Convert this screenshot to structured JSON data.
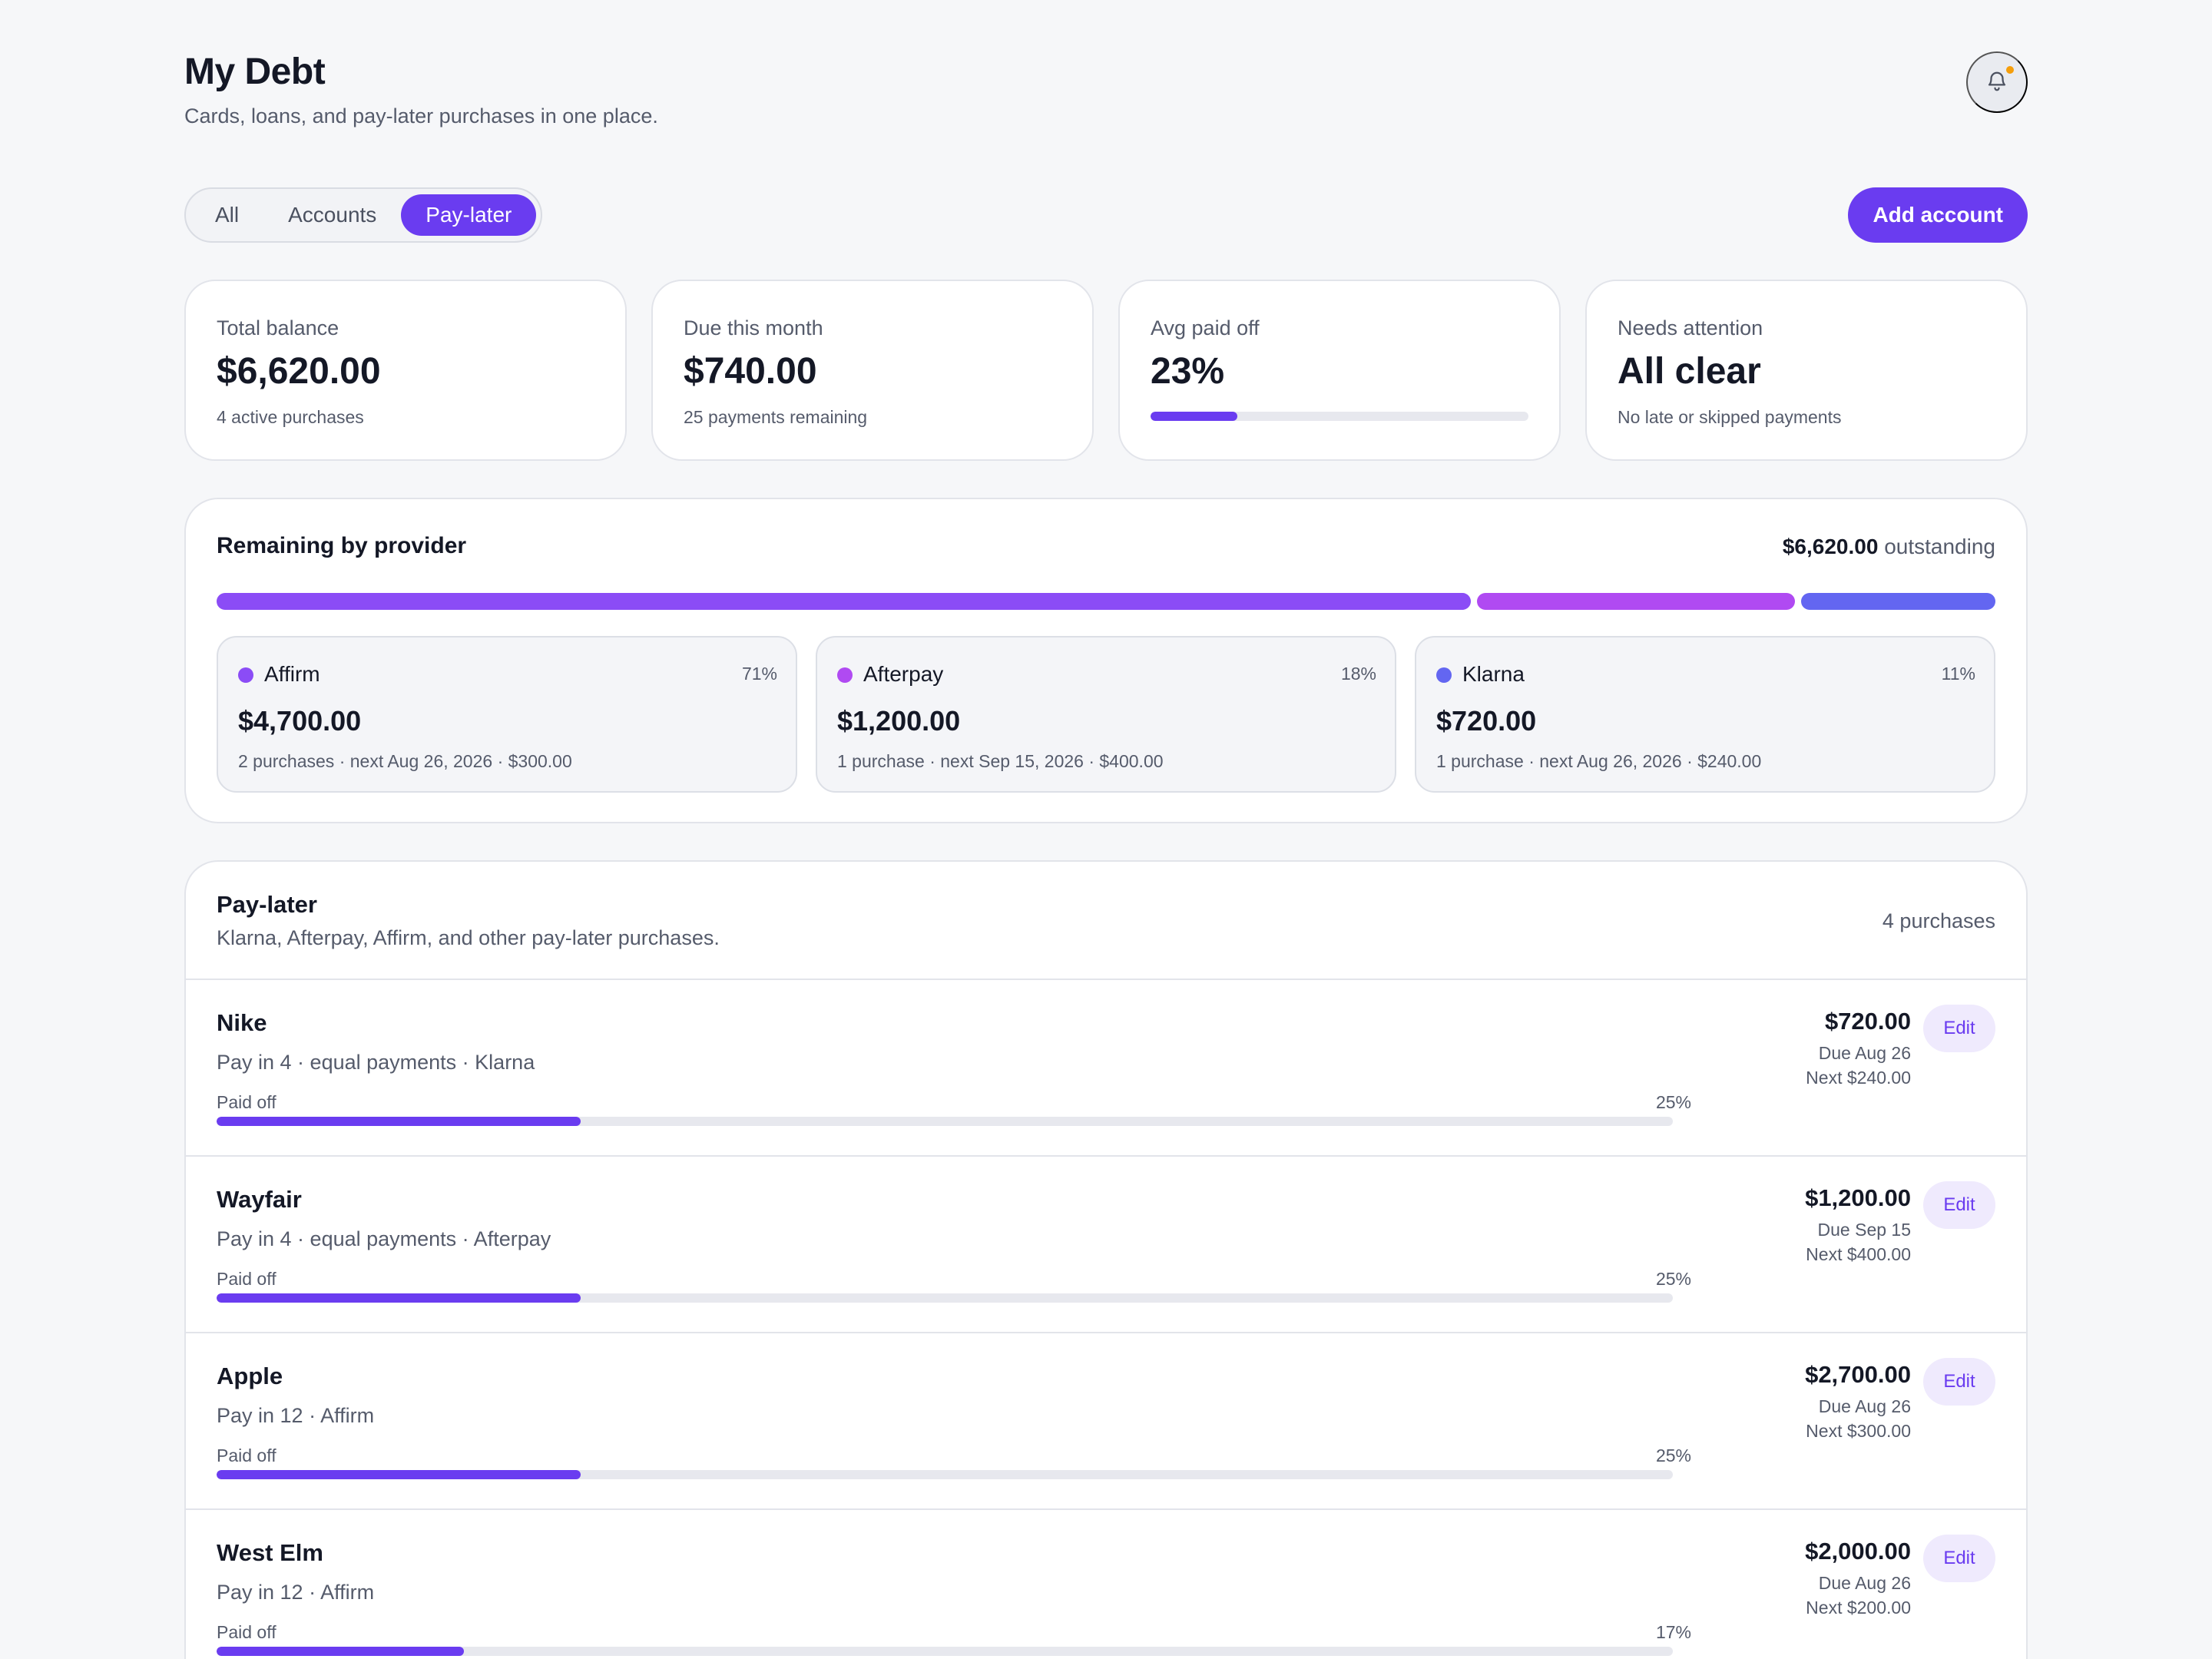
{
  "header": {
    "title": "My Debt",
    "subtitle": "Cards, loans, and pay-later purchases in one place.",
    "notification_icon": "bell-icon",
    "notification_dot_color": "#f59e0b"
  },
  "filters": {
    "tabs": [
      {
        "label": "All",
        "active": false
      },
      {
        "label": "Accounts",
        "active": false
      },
      {
        "label": "Pay-later",
        "active": true
      }
    ]
  },
  "toolbar": {
    "add_label": "Add account"
  },
  "stats": {
    "total_balance": {
      "label": "Total balance",
      "value": "$6,620.00",
      "sub": "4 active purchases"
    },
    "due_this_month": {
      "label": "Due this month",
      "value": "$740.00",
      "sub": "25 payments remaining"
    },
    "avg_paid_off": {
      "label": "Avg paid off",
      "value": "23%",
      "progress": 0.23
    },
    "needs_attention": {
      "label": "Needs attention",
      "value": "All clear",
      "sub": "No late or skipped payments"
    }
  },
  "providers": {
    "title": "Remaining by provider",
    "total_amount": "$6,620.00",
    "total_suffix": "outstanding",
    "items": [
      {
        "name": "Affirm",
        "pct_label": "71%",
        "share": 0.71,
        "amount": "$4,700.00",
        "sub": "2 purchases · next Aug 26, 2026 · $300.00",
        "color": "#8b4cf6"
      },
      {
        "name": "Afterpay",
        "pct_label": "18%",
        "share": 0.18,
        "amount": "$1,200.00",
        "sub": "1 purchase · next Sep 15, 2026 · $400.00",
        "color": "#b04af2"
      },
      {
        "name": "Klarna",
        "pct_label": "11%",
        "share": 0.11,
        "amount": "$720.00",
        "sub": "1 purchase · next Aug 26, 2026 · $240.00",
        "color": "#6366f1"
      }
    ]
  },
  "paylater": {
    "title": "Pay-later",
    "subtitle": "Klarna, Afterpay, Affirm, and other pay-later purchases.",
    "count_label": "4 purchases",
    "paid_label": "Paid off",
    "edit_label": "Edit",
    "rows": [
      {
        "name": "Nike",
        "desc": "Pay in 4 · equal payments · Klarna",
        "pct_label": "25%",
        "progress": 0.25,
        "amount": "$720.00",
        "due": "Due Aug 26",
        "next": "Next $240.00"
      },
      {
        "name": "Wayfair",
        "desc": "Pay in 4 · equal payments · Afterpay",
        "pct_label": "25%",
        "progress": 0.25,
        "amount": "$1,200.00",
        "due": "Due Sep 15",
        "next": "Next $400.00"
      },
      {
        "name": "Apple",
        "desc": "Pay in 12 · Affirm",
        "pct_label": "25%",
        "progress": 0.25,
        "amount": "$2,700.00",
        "due": "Due Aug 26",
        "next": "Next $300.00"
      },
      {
        "name": "West Elm",
        "desc": "Pay in 12 · Affirm",
        "pct_label": "17%",
        "progress": 0.17,
        "amount": "$2,000.00",
        "due": "Due Aug 26",
        "next": "Next $200.00"
      }
    ]
  },
  "colors": {
    "accent": "#6a3cf0",
    "background": "#f6f7f9"
  }
}
